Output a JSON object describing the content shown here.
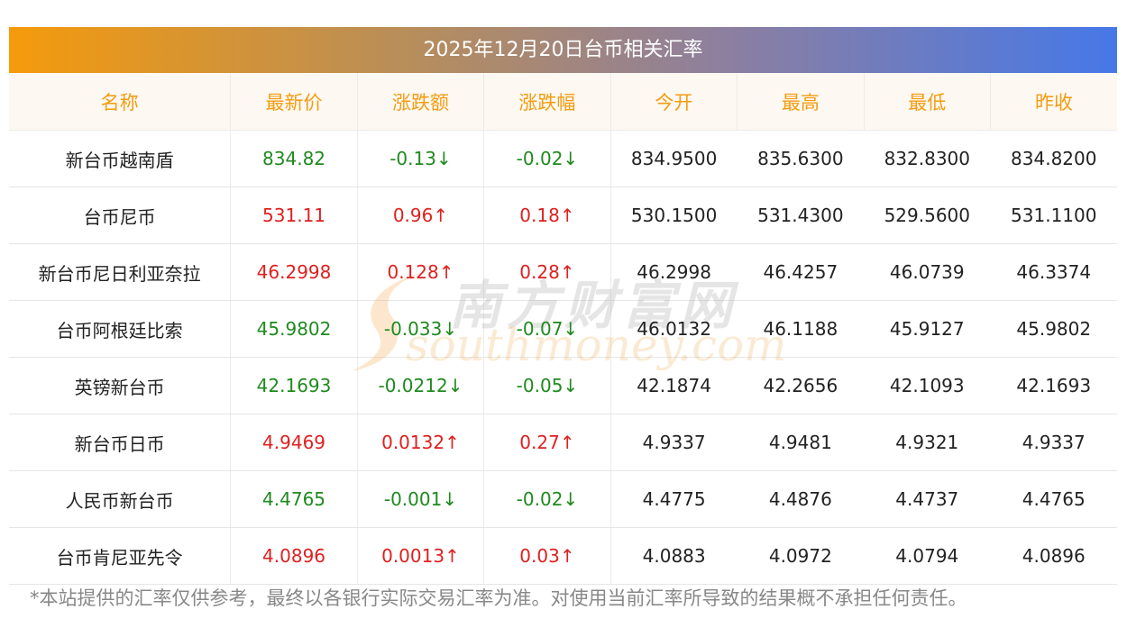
{
  "title": "2025年12月20日台币相关汇率",
  "columns": [
    "名称",
    "最新价",
    "涨跌额",
    "涨跌幅",
    "今开",
    "最高",
    "最低",
    "昨收"
  ],
  "rows": [
    {
      "name": "新台币越南盾",
      "latest": "834.82",
      "change": "-0.13↓",
      "pct": "-0.02↓",
      "open": "834.9500",
      "high": "835.6300",
      "low": "832.8300",
      "prev": "834.8200",
      "dir": "down"
    },
    {
      "name": "台币尼币",
      "latest": "531.11",
      "change": "0.96↑",
      "pct": "0.18↑",
      "open": "530.1500",
      "high": "531.4300",
      "low": "529.5600",
      "prev": "531.1100",
      "dir": "up"
    },
    {
      "name": "新台币尼日利亚奈拉",
      "latest": "46.2998",
      "change": "0.128↑",
      "pct": "0.28↑",
      "open": "46.2998",
      "high": "46.4257",
      "low": "46.0739",
      "prev": "46.3374",
      "dir": "up"
    },
    {
      "name": "台币阿根廷比索",
      "latest": "45.9802",
      "change": "-0.033↓",
      "pct": "-0.07↓",
      "open": "46.0132",
      "high": "46.1188",
      "low": "45.9127",
      "prev": "45.9802",
      "dir": "down"
    },
    {
      "name": "英镑新台币",
      "latest": "42.1693",
      "change": "-0.0212↓",
      "pct": "-0.05↓",
      "open": "42.1874",
      "high": "42.2656",
      "low": "42.1093",
      "prev": "42.1693",
      "dir": "down"
    },
    {
      "name": "新台币日币",
      "latest": "4.9469",
      "change": "0.0132↑",
      "pct": "0.27↑",
      "open": "4.9337",
      "high": "4.9481",
      "low": "4.9321",
      "prev": "4.9337",
      "dir": "up"
    },
    {
      "name": "人民币新台币",
      "latest": "4.4765",
      "change": "-0.001↓",
      "pct": "-0.02↓",
      "open": "4.4775",
      "high": "4.4876",
      "low": "4.4737",
      "prev": "4.4765",
      "dir": "down"
    },
    {
      "name": "台币肯尼亚先令",
      "latest": "4.0896",
      "change": "0.0013↑",
      "pct": "0.03↑",
      "open": "4.0883",
      "high": "4.0972",
      "low": "4.0794",
      "prev": "4.0896",
      "dir": "up"
    }
  ],
  "colors": {
    "up": "#e02020",
    "down": "#1f8a1f",
    "header_text": "#f39c12"
  },
  "watermark": {
    "cn": "南方财富网",
    "en": "southmoney.com"
  },
  "footer": "*本站提供的汇率仅供参考，最终以各银行实际交易汇率为准。对使用当前汇率所导致的结果概不承担任何责任。"
}
